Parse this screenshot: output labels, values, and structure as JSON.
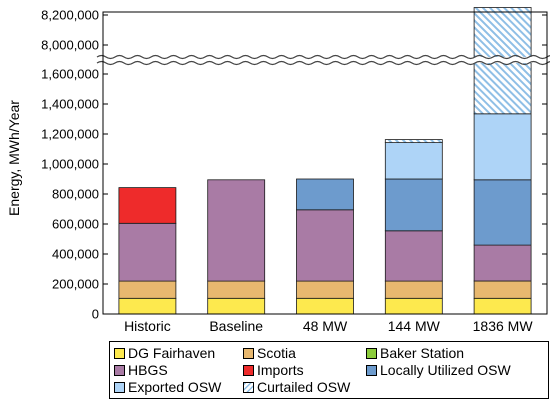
{
  "chart_data": {
    "type": "bar",
    "stacked": true,
    "ylabel": "Energy, MWh/Year",
    "xlabel": "",
    "axis_break": {
      "lower_max": 1700000,
      "upper_min": 7900000
    },
    "ylim_lower": [
      0,
      1700000
    ],
    "ylim_upper": [
      7900000,
      8200000
    ],
    "y_ticks": [
      {
        "value": 0,
        "label": "0"
      },
      {
        "value": 200000,
        "label": "200,000"
      },
      {
        "value": 400000,
        "label": "400,000"
      },
      {
        "value": 600000,
        "label": "600,000"
      },
      {
        "value": 800000,
        "label": "800,000"
      },
      {
        "value": 1000000,
        "label": "1,000,000"
      },
      {
        "value": 1200000,
        "label": "1,200,000"
      },
      {
        "value": 1400000,
        "label": "1,400,000"
      },
      {
        "value": 1600000,
        "label": "1,600,000"
      },
      {
        "value": 8000000,
        "label": "8,000,000"
      },
      {
        "value": 8200000,
        "label": "8,200,000"
      }
    ],
    "categories": [
      "Historic",
      "Baseline",
      "48 MW",
      "144 MW",
      "1836 MW"
    ],
    "series": [
      {
        "name": "DG Fairhaven",
        "color": "#fde94e",
        "values": [
          105000,
          105000,
          105000,
          105000,
          105000
        ]
      },
      {
        "name": "Scotia",
        "color": "#e8b86f",
        "values": [
          115000,
          115000,
          115000,
          115000,
          115000
        ]
      },
      {
        "name": "Baker Station",
        "color": "#8ccc3c",
        "values": [
          0,
          0,
          0,
          0,
          0
        ]
      },
      {
        "name": "HBGS",
        "color": "#a97ba5",
        "values": [
          385000,
          675000,
          475000,
          335000,
          240000
        ]
      },
      {
        "name": "Imports",
        "color": "#ee2b2b",
        "values": [
          238000,
          0,
          0,
          0,
          0
        ]
      },
      {
        "name": "Locally Utilized OSW",
        "color": "#6d9bcd",
        "values": [
          0,
          0,
          205000,
          345000,
          435000
        ]
      },
      {
        "name": "Exported OSW",
        "color": "#aed4f7",
        "values": [
          0,
          0,
          0,
          243000,
          440000
        ]
      },
      {
        "name": "Curtailed OSW",
        "color": "#8fbfe6",
        "pattern": "hatch",
        "values": [
          0,
          0,
          0,
          20000,
          6915000
        ]
      }
    ],
    "legend": {
      "placement": "bottom",
      "entries": [
        "DG Fairhaven",
        "Scotia",
        "Baker Station",
        "HBGS",
        "Imports",
        "Locally Utilized OSW",
        "Exported OSW",
        "Curtailed OSW"
      ]
    },
    "grid": false
  }
}
